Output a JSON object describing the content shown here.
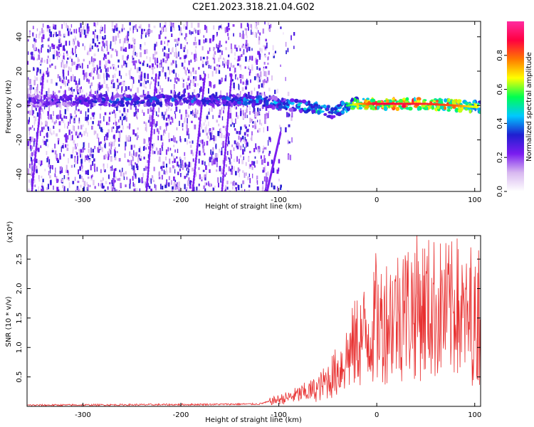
{
  "title": "C2E1.2023.318.21.04.G02",
  "chart_data": [
    {
      "type": "heatmap",
      "xlabel": "Height of straight line (km)",
      "ylabel": "Frequency (Hz)",
      "xlim": [
        -357,
        106
      ],
      "ylim": [
        -50,
        49
      ],
      "xticks": [
        -300,
        -200,
        -100,
        0,
        100
      ],
      "yticks": [
        -40,
        -20,
        0,
        20,
        40
      ],
      "colorbar": {
        "label": "Normalized spectral amplitude",
        "range": [
          0.0,
          1.0
        ],
        "ticks": [
          "0.0",
          "0.2",
          "0.4",
          "0.6",
          "0.8"
        ],
        "tick_values": [
          0.0,
          0.2,
          0.4,
          0.6,
          0.8
        ],
        "colormap": [
          "#ffffff",
          "#d8b8f0",
          "#7a1cf0",
          "#1f1fd0",
          "#00c8ff",
          "#00ff50",
          "#ffff00",
          "#ff7800",
          "#ff0040",
          "#ff2ba0"
        ]
      },
      "main_band_x": [
        -357,
        -300,
        -250,
        -200,
        -150,
        -120,
        -100,
        -80,
        -60,
        -45,
        -38,
        -30,
        -20,
        0,
        50,
        80,
        106
      ],
      "main_band_freq": [
        3,
        3,
        3,
        3,
        3,
        3,
        1,
        0,
        -2,
        -4,
        -2,
        0,
        1,
        1,
        1,
        0,
        -1
      ],
      "main_band_amp": [
        0.3,
        0.35,
        0.4,
        0.38,
        0.4,
        0.45,
        0.45,
        0.5,
        0.55,
        0.5,
        0.5,
        0.55,
        0.7,
        0.9,
        0.85,
        0.8,
        0.6
      ],
      "noise_region_x": [
        -357,
        -110
      ],
      "grid": false
    },
    {
      "type": "line",
      "xlabel": "Height of straight line (km)",
      "ylabel": "SNR (10 * v/v)",
      "scale_label": "(x10⁴)",
      "xlim": [
        -357,
        106
      ],
      "ylim": [
        0,
        2.9
      ],
      "xticks": [
        -300,
        -200,
        -100,
        0,
        100
      ],
      "yticks": [
        0.5,
        1.0,
        1.5,
        2.0,
        2.5
      ],
      "ytick_labels": [
        "0.5",
        "1.0",
        "1.5",
        "2.0",
        "2.5"
      ],
      "color": "#e83030",
      "envelope_x": [
        -357,
        -200,
        -120,
        -110,
        -90,
        -60,
        -40,
        -20,
        -5,
        10,
        25,
        40,
        60,
        80,
        95,
        106
      ],
      "envelope_y": [
        0.02,
        0.03,
        0.04,
        0.08,
        0.15,
        0.3,
        0.6,
        1.1,
        1.3,
        1.5,
        1.6,
        1.7,
        1.65,
        1.6,
        1.4,
        1.4
      ],
      "peaks": [
        {
          "x": -1,
          "y": 2.6
        },
        {
          "x": 27,
          "y": 2.5
        },
        {
          "x": 82,
          "y": 2.85
        },
        {
          "x": 96,
          "y": 2.7
        },
        {
          "x": 104,
          "y": 2.65
        }
      ],
      "grid": false
    }
  ]
}
